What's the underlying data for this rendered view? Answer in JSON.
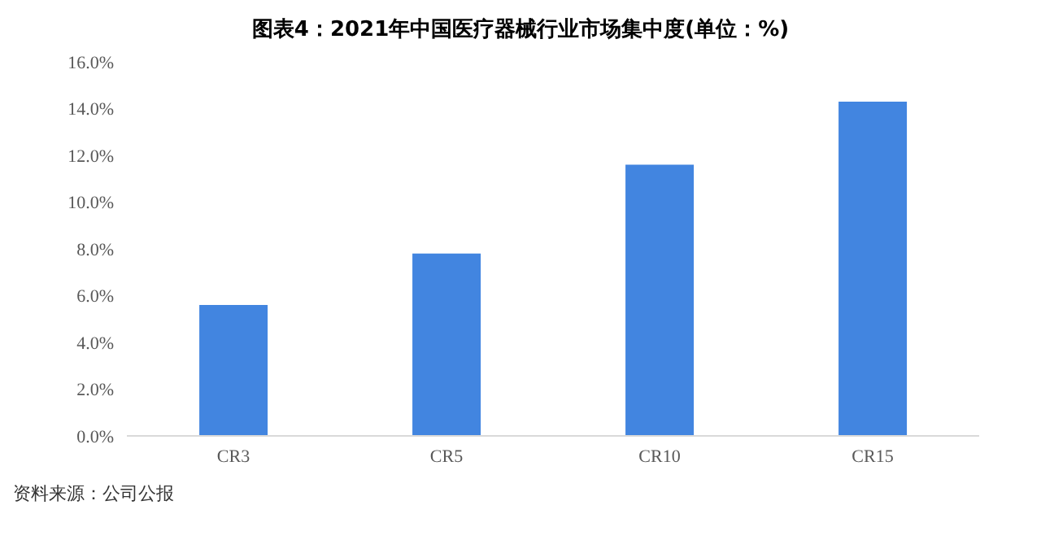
{
  "chart_data": {
    "type": "bar",
    "title": "图表4：2021年中国医疗器械行业市场集中度(单位：%)",
    "categories": [
      "CR3",
      "CR5",
      "CR10",
      "CR15"
    ],
    "values": [
      5.6,
      7.8,
      11.6,
      14.3
    ],
    "color": "#4285e0",
    "ylim": [
      0,
      16
    ],
    "yticks": [
      {
        "value": 0,
        "label": "0.0%"
      },
      {
        "value": 2,
        "label": "2.0%"
      },
      {
        "value": 4,
        "label": "4.0%"
      },
      {
        "value": 6,
        "label": "6.0%"
      },
      {
        "value": 8,
        "label": "8.0%"
      },
      {
        "value": 10,
        "label": "10.0%"
      },
      {
        "value": 12,
        "label": "12.0%"
      },
      {
        "value": 14,
        "label": "14.0%"
      },
      {
        "value": 16,
        "label": "16.0%"
      }
    ],
    "grid": false,
    "legend": false,
    "annotations": [
      "资料来源：公司公报"
    ]
  }
}
